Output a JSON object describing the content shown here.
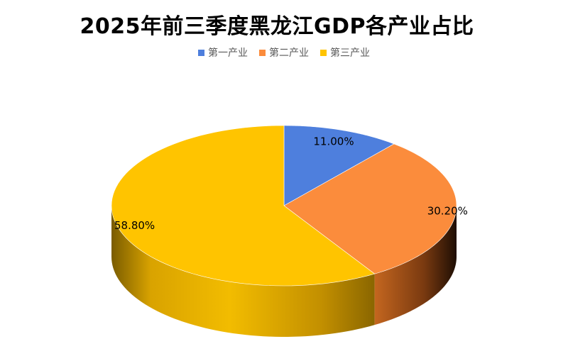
{
  "chart_data": {
    "type": "pie",
    "style": "3d",
    "title": "2025年前三季度黑龙江GDP各产业占比",
    "categories": [
      "第一产业",
      "第二产业",
      "第三产业"
    ],
    "values": [
      11.0,
      30.2,
      58.8
    ],
    "labels": [
      "11.00%",
      "30.20%",
      "58.80%"
    ],
    "colors": [
      "#4E7FDD",
      "#FB8C3C",
      "#FFC400"
    ],
    "side_colors": [
      "#3A63B0",
      "#B4561A",
      "#D9A300"
    ],
    "legend_position": "top"
  }
}
